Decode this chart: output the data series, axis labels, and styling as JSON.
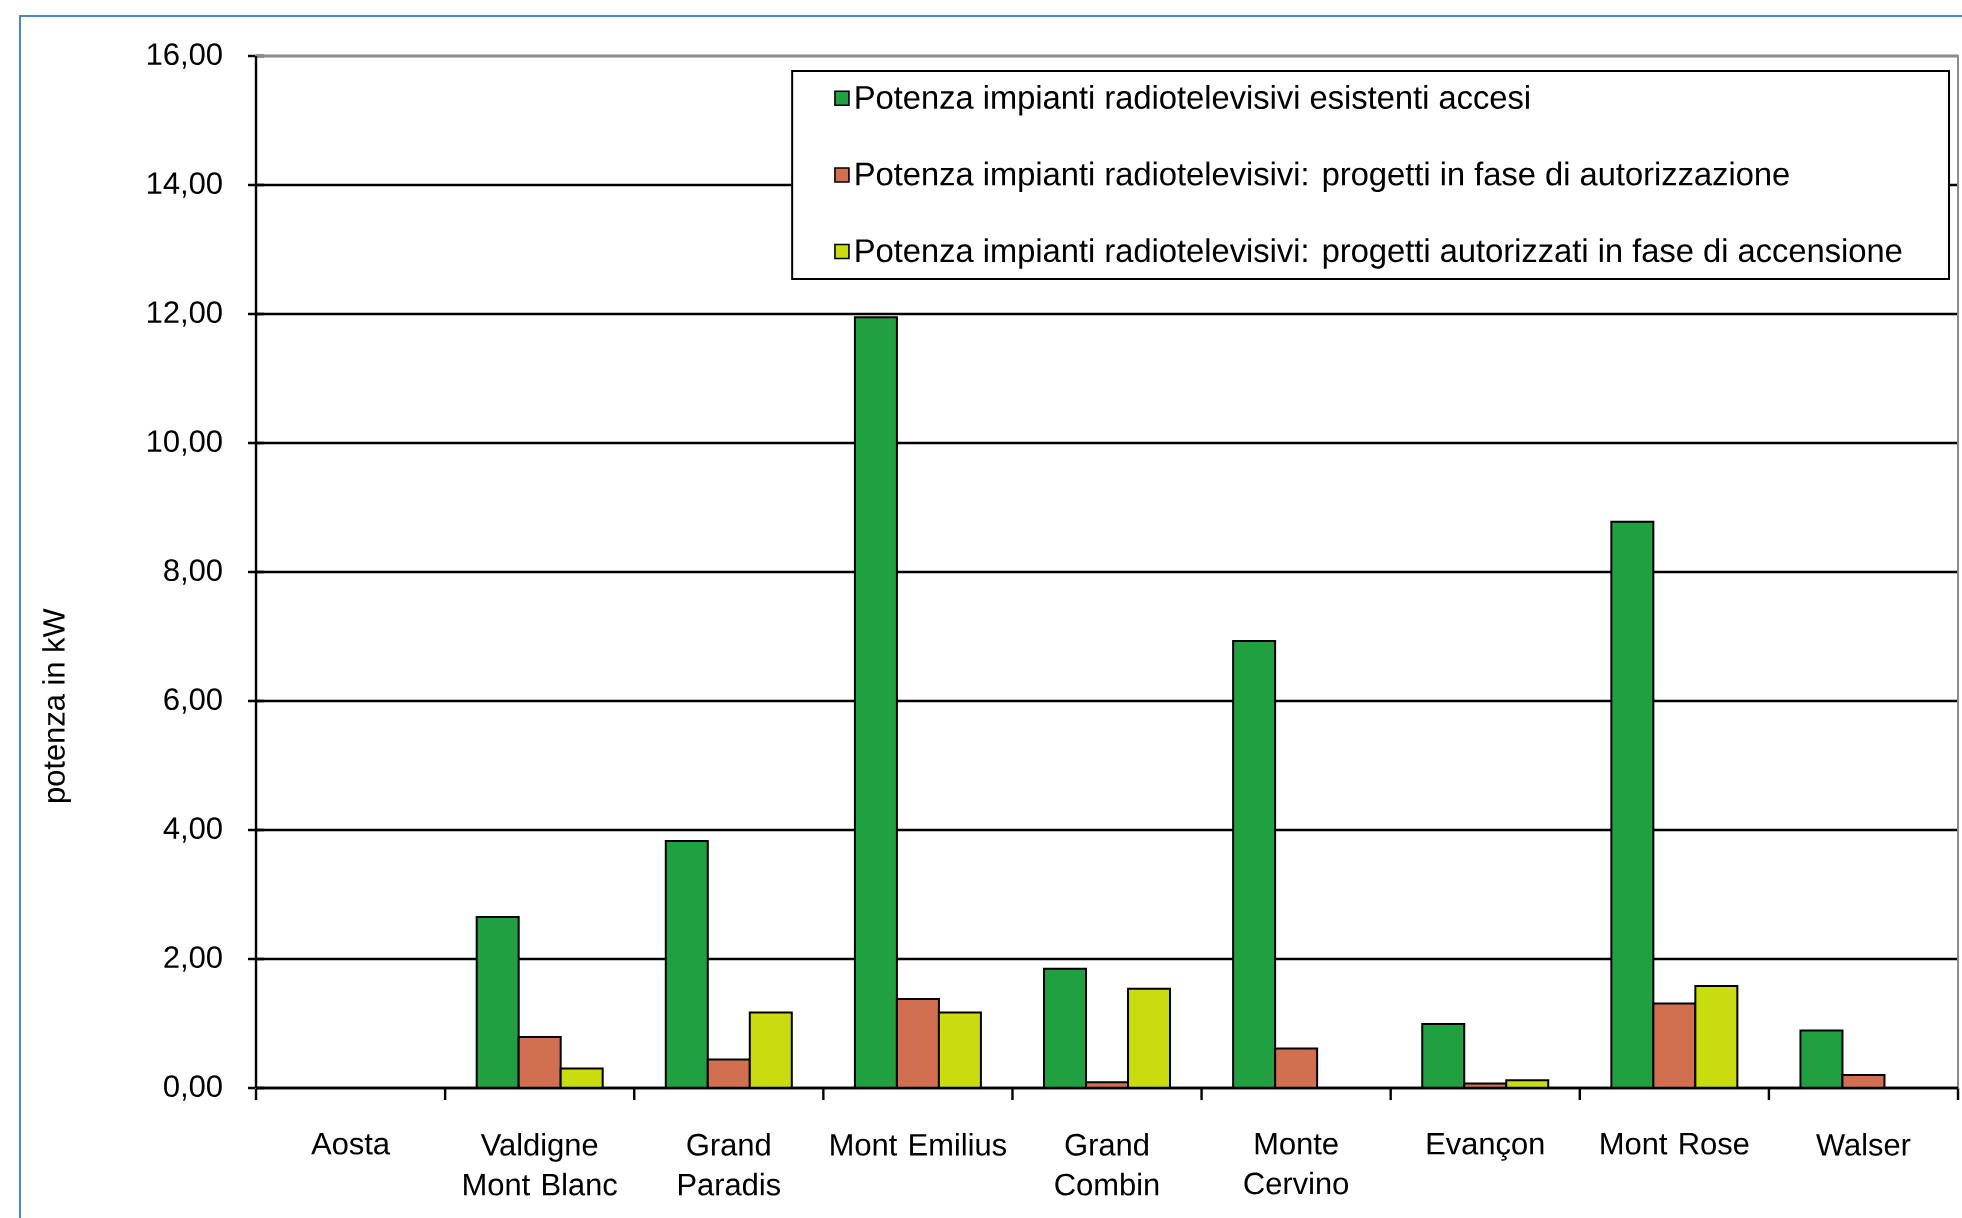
{
  "chart_data": {
    "type": "bar",
    "ylabel": "potenza in kW",
    "categories": [
      "Aosta",
      "Valdigne Mont Blanc",
      "Grand Paradis",
      "Mont Emilius",
      "Grand Combin",
      "Monte Cervino",
      "Evançon",
      "Mont Rose",
      "Walser"
    ],
    "series": [
      {
        "name": "Potenza impianti radiotelevisivi esistenti accesi",
        "color": "#20a040",
        "values": [
          null,
          2.65,
          3.83,
          11.95,
          1.85,
          6.93,
          0.99,
          8.78,
          0.89
        ]
      },
      {
        "name": "Potenza impianti radiotelevisivi: progetti in fase di autorizzazione",
        "color": "#d07050",
        "values": [
          null,
          0.79,
          0.44,
          1.38,
          0.09,
          0.61,
          0.07,
          1.31,
          0.2
        ]
      },
      {
        "name": "Potenza impianti radiotelevisivi: progetti autorizzati in fase di accensione",
        "color": "#c8dc10",
        "values": [
          null,
          0.3,
          1.17,
          1.17,
          1.54,
          null,
          0.12,
          1.58,
          null
        ]
      }
    ],
    "ylim": [
      0,
      16
    ],
    "yticks": [
      {
        "value": 0,
        "label": "0,00"
      },
      {
        "value": 2,
        "label": "2,00"
      },
      {
        "value": 4,
        "label": "4,00"
      },
      {
        "value": 6,
        "label": "6,00"
      },
      {
        "value": 8,
        "label": "8,00"
      },
      {
        "value": 10,
        "label": "10,00"
      },
      {
        "value": 12,
        "label": "12,00"
      },
      {
        "value": 14,
        "label": "14,00"
      },
      {
        "value": 16,
        "label": "16,00"
      }
    ],
    "grid": "y",
    "legend": "top right"
  }
}
